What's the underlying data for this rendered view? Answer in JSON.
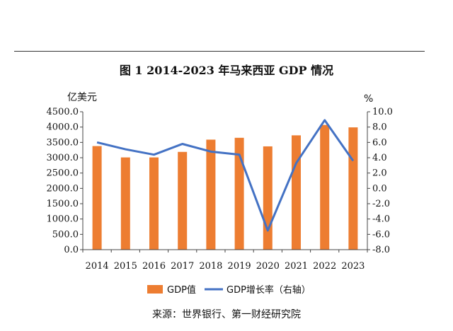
{
  "title": "图 1 2014-2023 年马来西亚 GDP 情况",
  "source": "来源：世界银行、第一财经研究院",
  "chart_data": {
    "type": "bar",
    "categories": [
      "2014",
      "2015",
      "2016",
      "2017",
      "2018",
      "2019",
      "2020",
      "2021",
      "2022",
      "2023"
    ],
    "series": [
      {
        "name": "GDP值",
        "type": "bar",
        "axis": "left",
        "color": "#ED7D31",
        "values": [
          3380,
          3010,
          3010,
          3190,
          3590,
          3650,
          3370,
          3730,
          4070,
          3990
        ]
      },
      {
        "name": "GDP增长率（右轴）",
        "type": "line",
        "axis": "right",
        "color": "#4472C4",
        "values": [
          6.0,
          5.1,
          4.4,
          5.8,
          4.8,
          4.4,
          -5.5,
          3.3,
          8.9,
          3.6
        ]
      }
    ],
    "left_axis": {
      "unit": "亿美元",
      "ylim": [
        0,
        4500
      ],
      "ticks": [
        "0.0",
        "500.0",
        "1000.0",
        "1500.0",
        "2000.0",
        "2500.0",
        "3000.0",
        "3500.0",
        "4000.0",
        "4500.0"
      ]
    },
    "right_axis": {
      "unit": "%",
      "ylim": [
        -8,
        10
      ],
      "ticks": [
        "-8.0",
        "-6.0",
        "-4.0",
        "-2.0",
        "0.0",
        "2.0",
        "4.0",
        "6.0",
        "8.0",
        "10.0"
      ]
    },
    "legend_position": "bottom",
    "grid": false
  }
}
